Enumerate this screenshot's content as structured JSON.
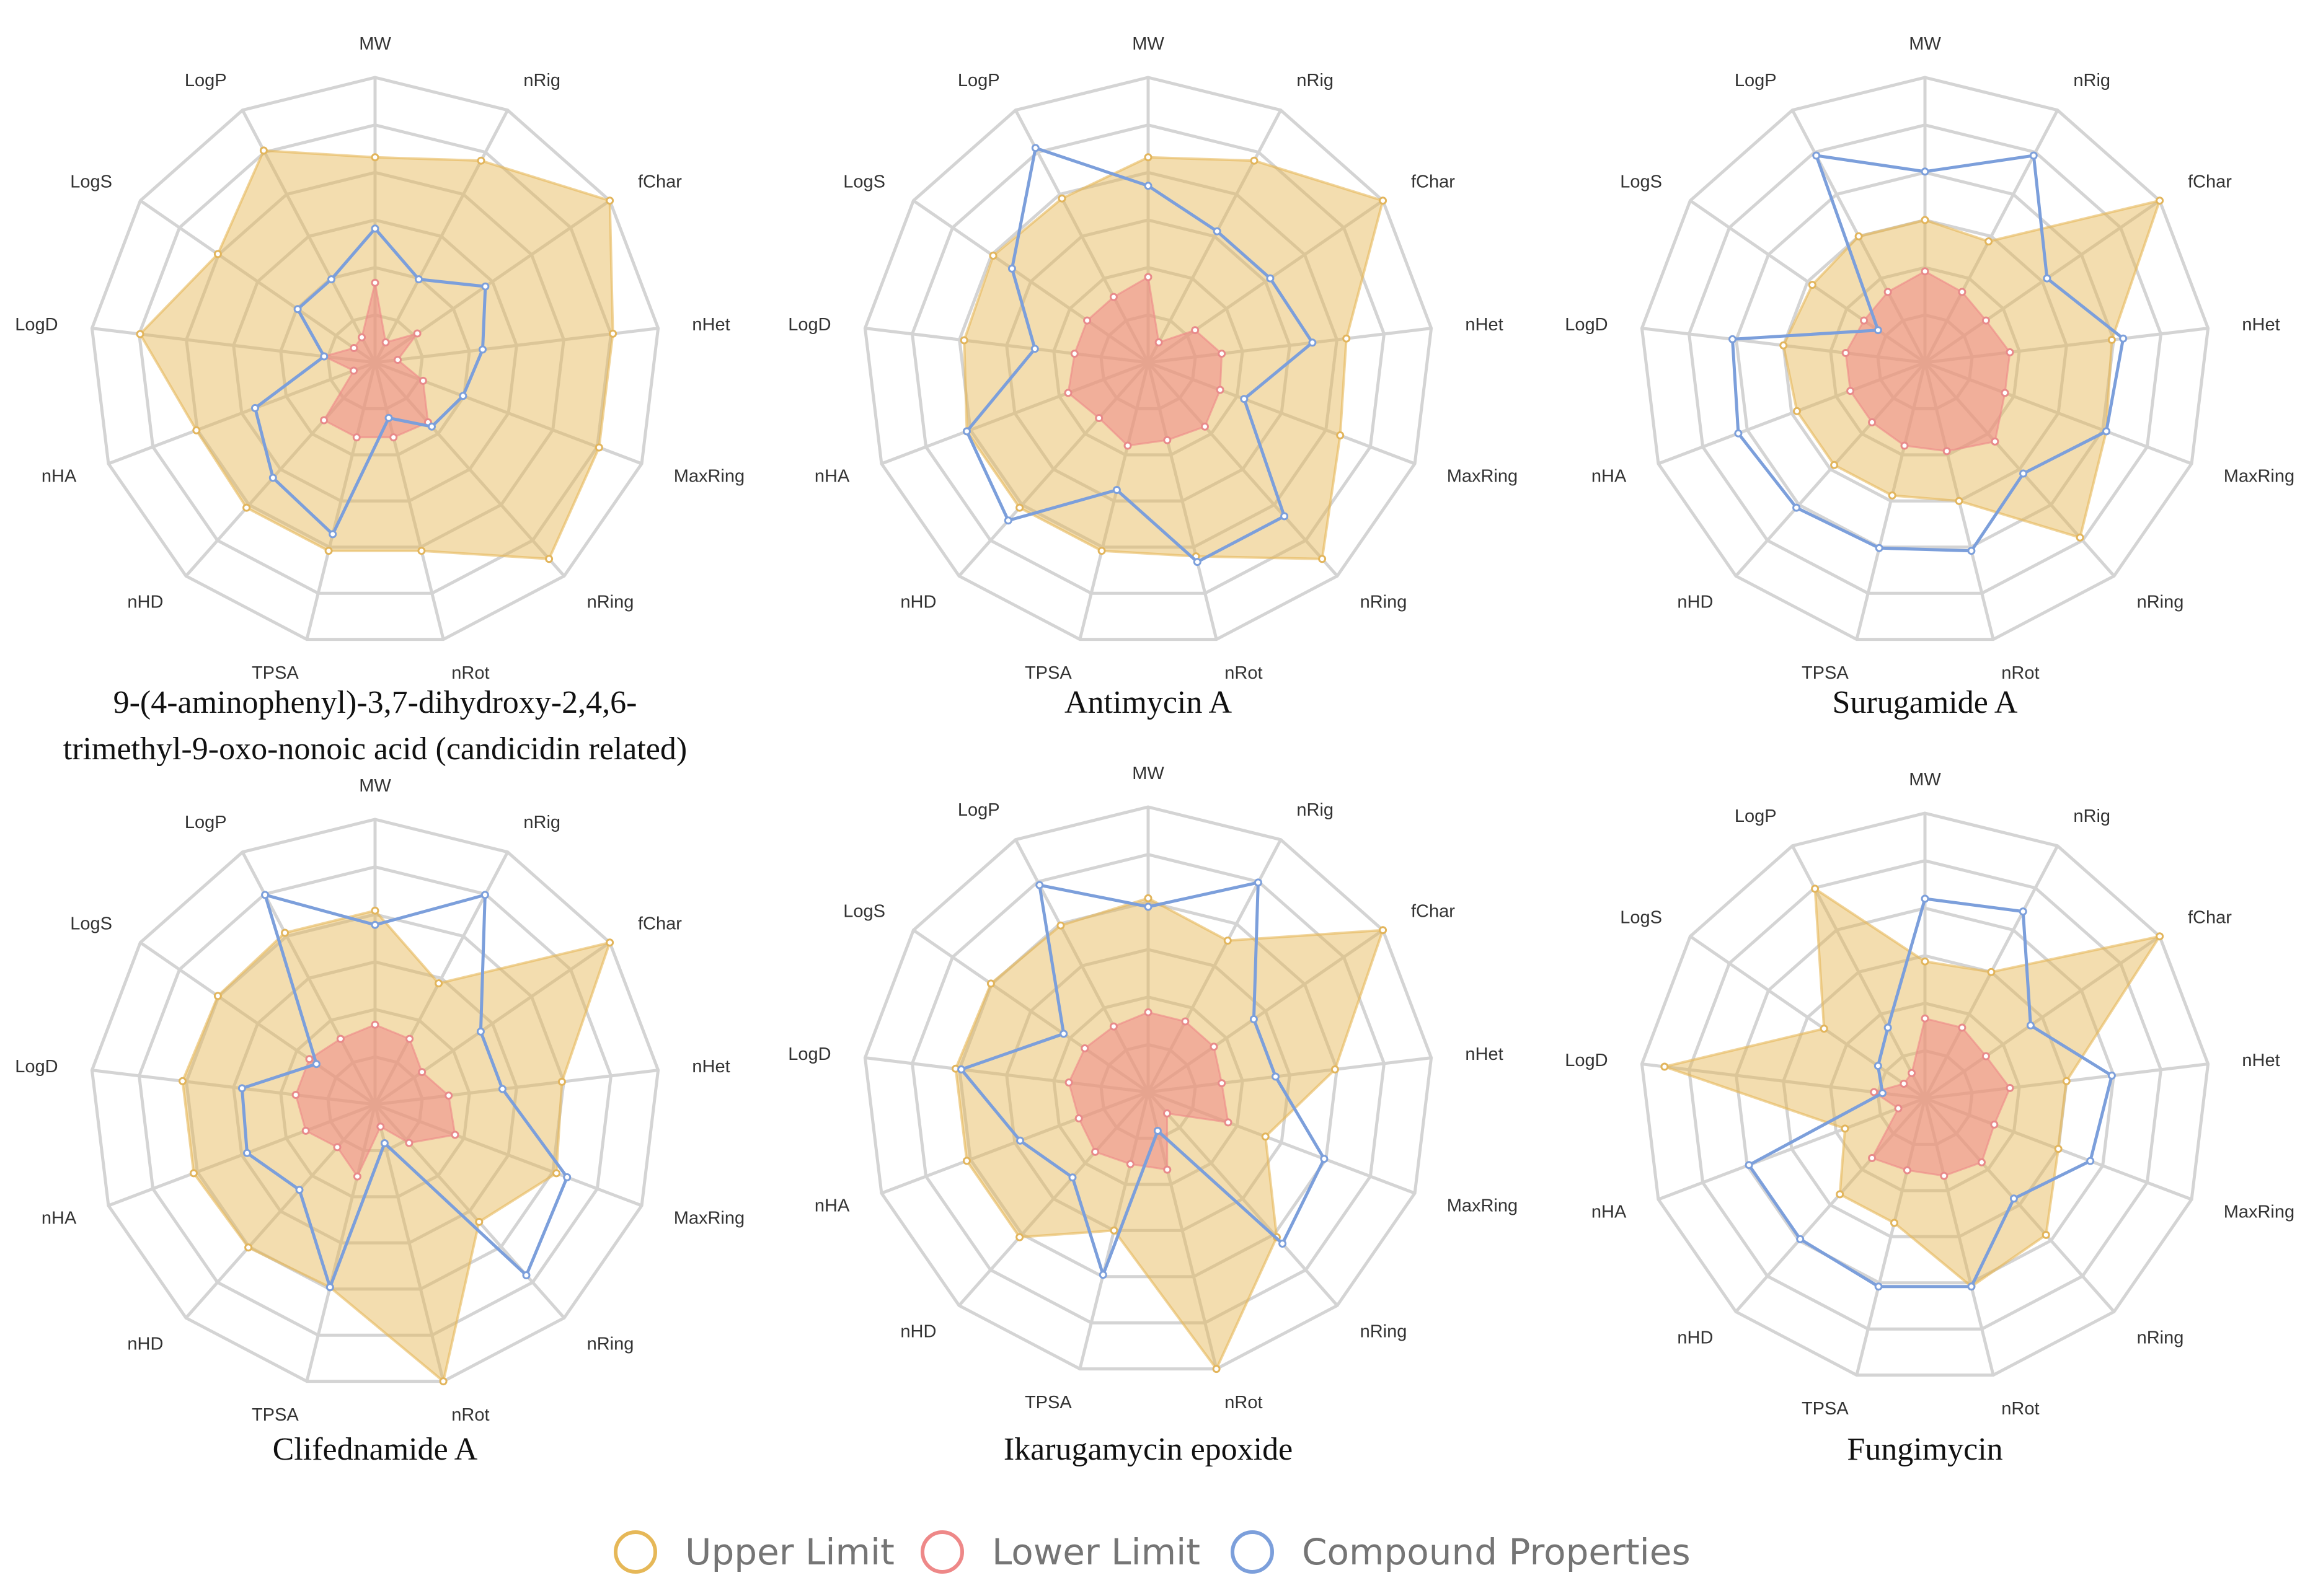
{
  "chart_data": {
    "type": "radar",
    "axes": [
      "MW",
      "nRig",
      "fChar",
      "nHet",
      "MaxRing",
      "nRing",
      "nRot",
      "TPSA",
      "nHD",
      "nHA",
      "LogD",
      "LogS",
      "LogP"
    ],
    "rmax": 1.0,
    "rings": 6,
    "legend": {
      "position": "bottom-center",
      "items": [
        {
          "name": "Upper Limit",
          "color": "#e6b858"
        },
        {
          "name": "Lower Limit",
          "color": "#ee8888"
        },
        {
          "name": "Compound Properties",
          "color": "#7c9fdb"
        }
      ]
    },
    "charts": [
      {
        "title_lines": [
          "9-(4-aminophenyl)-3,7-dihydroxy-2,4,6-",
          "trimethyl-9-oxo-nonoic acid (candicidin related)"
        ],
        "upper": [
          0.72,
          0.8,
          1.0,
          0.84,
          0.84,
          0.92,
          0.68,
          0.68,
          0.68,
          0.67,
          0.83,
          0.67,
          0.84
        ],
        "lower": [
          0.28,
          0.08,
          0.18,
          0.08,
          0.18,
          0.28,
          0.27,
          0.27,
          0.27,
          0.08,
          0.18,
          0.09,
          0.1
        ],
        "compound": [
          0.47,
          0.33,
          0.47,
          0.38,
          0.33,
          0.3,
          0.2,
          0.62,
          0.54,
          0.45,
          0.18,
          0.33,
          0.33
        ]
      },
      {
        "title_lines": [
          "Antimycin A"
        ],
        "upper": [
          0.72,
          0.8,
          1.0,
          0.7,
          0.72,
          0.92,
          0.7,
          0.68,
          0.68,
          0.68,
          0.65,
          0.66,
          0.65
        ],
        "lower": [
          0.3,
          0.08,
          0.2,
          0.26,
          0.27,
          0.3,
          0.28,
          0.3,
          0.26,
          0.3,
          0.26,
          0.26,
          0.26
        ],
        "compound": [
          0.62,
          0.52,
          0.52,
          0.58,
          0.36,
          0.72,
          0.72,
          0.46,
          0.74,
          0.68,
          0.4,
          0.58,
          0.85
        ]
      },
      {
        "title_lines": [
          "Surugamide A"
        ],
        "upper": [
          0.5,
          0.48,
          1.0,
          0.66,
          0.68,
          0.82,
          0.5,
          0.48,
          0.48,
          0.48,
          0.5,
          0.48,
          0.5
        ],
        "lower": [
          0.32,
          0.28,
          0.26,
          0.3,
          0.3,
          0.37,
          0.32,
          0.3,
          0.28,
          0.28,
          0.28,
          0.26,
          0.28
        ],
        "compound": [
          0.67,
          0.82,
          0.52,
          0.7,
          0.68,
          0.52,
          0.68,
          0.67,
          0.68,
          0.7,
          0.68,
          0.2,
          0.82
        ]
      },
      {
        "title_lines": [
          "Clifednamide A"
        ],
        "upper": [
          0.68,
          0.48,
          1.0,
          0.66,
          0.68,
          0.55,
          1.0,
          0.66,
          0.67,
          0.68,
          0.68,
          0.67,
          0.68
        ],
        "lower": [
          0.28,
          0.26,
          0.2,
          0.26,
          0.3,
          0.18,
          0.08,
          0.26,
          0.2,
          0.26,
          0.28,
          0.28,
          0.26
        ],
        "compound": [
          0.63,
          0.83,
          0.45,
          0.45,
          0.72,
          0.8,
          0.14,
          0.66,
          0.4,
          0.48,
          0.47,
          0.25,
          0.83
        ]
      },
      {
        "title_lines": [
          "Ikarugamycin epoxide"
        ],
        "upper": [
          0.68,
          0.6,
          1.0,
          0.66,
          0.44,
          0.68,
          1.0,
          0.5,
          0.68,
          0.68,
          0.68,
          0.67,
          0.66
        ],
        "lower": [
          0.28,
          0.28,
          0.28,
          0.26,
          0.3,
          0.1,
          0.28,
          0.26,
          0.28,
          0.26,
          0.28,
          0.27,
          0.26
        ],
        "compound": [
          0.65,
          0.83,
          0.45,
          0.45,
          0.66,
          0.71,
          0.14,
          0.66,
          0.4,
          0.48,
          0.66,
          0.36,
          0.82
        ]
      },
      {
        "title_lines": [
          "Fungimycin"
        ],
        "upper": [
          0.48,
          0.5,
          1.0,
          0.5,
          0.5,
          0.64,
          0.68,
          0.45,
          0.45,
          0.3,
          0.92,
          0.43,
          0.83
        ],
        "lower": [
          0.28,
          0.28,
          0.26,
          0.3,
          0.26,
          0.3,
          0.28,
          0.26,
          0.28,
          0.1,
          0.18,
          0.09,
          0.1
        ],
        "compound": [
          0.7,
          0.74,
          0.45,
          0.66,
          0.62,
          0.47,
          0.68,
          0.68,
          0.66,
          0.66,
          0.15,
          0.2,
          0.28
        ]
      }
    ]
  }
}
